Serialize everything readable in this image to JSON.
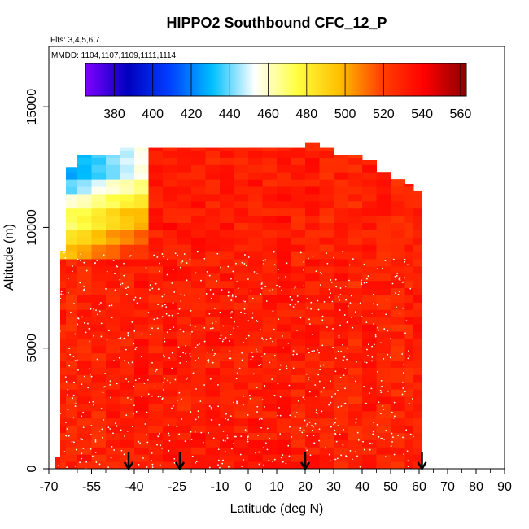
{
  "chart_data": {
    "type": "heatmap",
    "title": "HIPPO2 Southbound CFC_12_P",
    "subtitle_flights": "Flts: 3,4,5,6,7",
    "subtitle_dates": "MMDD: 1104,1107,1109,1111,1114",
    "xlabel": "Latitude (deg N)",
    "ylabel": "Altitude (m)",
    "xlim": [
      -70,
      90
    ],
    "ylim": [
      0,
      17500
    ],
    "x_ticks": [
      "-70",
      "-55",
      "-40",
      "-25",
      "-10",
      "0",
      "10",
      "20",
      "30",
      "40",
      "50",
      "60",
      "70",
      "80",
      "90"
    ],
    "y_ticks": [
      "0",
      "5000",
      "10000",
      "15000"
    ],
    "colorbar": {
      "range": [
        365,
        563
      ],
      "ticks": [
        "380",
        "400",
        "420",
        "440",
        "460",
        "480",
        "500",
        "520",
        "540",
        "560"
      ],
      "colors": [
        "#7f00ff",
        "#0000bf",
        "#0040ff",
        "#00bfff",
        "#ffffff",
        "#ffff40",
        "#ffbf00",
        "#ff4000",
        "#ff0000",
        "#8b0000"
      ]
    },
    "columns": [
      {
        "lat": -68,
        "top": 500,
        "value": 532
      },
      {
        "lat": -66,
        "top": 9000,
        "value": 531
      },
      {
        "lat": -64,
        "top": 12500,
        "value": 528
      },
      {
        "lat": -60,
        "top": 13000,
        "value": 530
      },
      {
        "lat": -55,
        "top": 13000,
        "value": 529
      },
      {
        "lat": -50,
        "top": 13000,
        "value": 532
      },
      {
        "lat": -45,
        "top": 13300,
        "value": 530
      },
      {
        "lat": -40,
        "top": 13300,
        "value": 533
      },
      {
        "lat": -35,
        "top": 13300,
        "value": 531
      },
      {
        "lat": -30,
        "top": 13300,
        "value": 534
      },
      {
        "lat": -25,
        "top": 13300,
        "value": 530
      },
      {
        "lat": -20,
        "top": 13300,
        "value": 533
      },
      {
        "lat": -15,
        "top": 13300,
        "value": 531
      },
      {
        "lat": -10,
        "top": 13300,
        "value": 533
      },
      {
        "lat": -5,
        "top": 13300,
        "value": 530
      },
      {
        "lat": 0,
        "top": 13300,
        "value": 532
      },
      {
        "lat": 5,
        "top": 13300,
        "value": 531
      },
      {
        "lat": 10,
        "top": 13300,
        "value": 533
      },
      {
        "lat": 15,
        "top": 13300,
        "value": 530
      },
      {
        "lat": 20,
        "top": 13500,
        "value": 532
      },
      {
        "lat": 25,
        "top": 13300,
        "value": 529
      },
      {
        "lat": 30,
        "top": 13000,
        "value": 531
      },
      {
        "lat": 35,
        "top": 13000,
        "value": 528
      },
      {
        "lat": 40,
        "top": 12800,
        "value": 532
      },
      {
        "lat": 45,
        "top": 12300,
        "value": 530
      },
      {
        "lat": 50,
        "top": 12000,
        "value": 529
      },
      {
        "lat": 55,
        "top": 11800,
        "value": 530
      },
      {
        "lat": 58,
        "top": 11500,
        "value": 531
      }
    ],
    "upper_gradient": [
      {
        "alt": 12400,
        "value": 455
      },
      {
        "alt": 11800,
        "value": 470
      },
      {
        "alt": 11000,
        "value": 485
      },
      {
        "alt": 10300,
        "value": 500
      },
      {
        "alt": 9500,
        "value": 515
      },
      {
        "alt": 8700,
        "value": 525
      }
    ],
    "flight_markers_lat": [
      -42,
      -24,
      20,
      61
    ]
  }
}
